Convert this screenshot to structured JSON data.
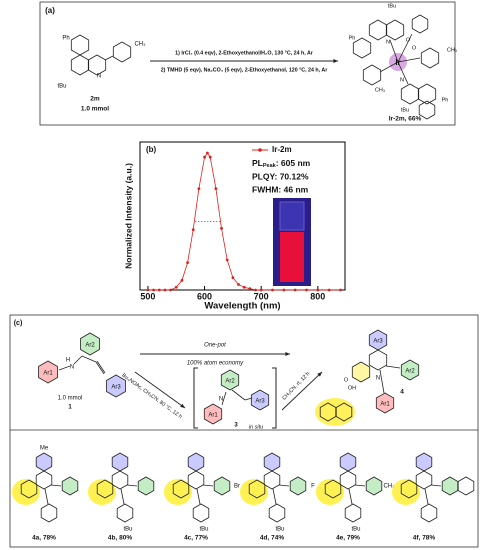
{
  "panel_a": {
    "label": "(a)",
    "reactant": {
      "name": "2m",
      "amount": "1.0 mmol",
      "groups": [
        "Ph",
        "tBu",
        "N",
        "CH₃"
      ]
    },
    "conditions": [
      "1) IrCl₃ (0.4 eqv), 2-Ethoxyethanol/H₂O, 130 °C, 24 h, Ar",
      "2) TMHD (5 eqv), Na₂CO₃ (5 eqv), 2-Ethoxyethanol, 120 °C, 24 h, Ar"
    ],
    "product": {
      "name": "Ir-2m, 66%",
      "metal": "Ir",
      "groups": [
        "tBu",
        "Ph",
        "N",
        "O",
        "O",
        "CH₃",
        "CH₃",
        "N",
        "Ph",
        "tBu"
      ]
    }
  },
  "chart_data": {
    "type": "line",
    "label": "(b)",
    "xlabel": "Wavelength (nm)",
    "ylabel": "Normalized Intensity (a.u.)",
    "x": [
      500,
      510,
      520,
      530,
      540,
      550,
      560,
      570,
      580,
      590,
      600,
      605,
      610,
      620,
      630,
      640,
      650,
      660,
      670,
      680,
      690,
      700,
      720,
      740,
      760,
      780,
      800,
      820,
      840
    ],
    "series": [
      {
        "name": "Ir-2m",
        "color": "#e0201c",
        "values": [
          0,
          0,
          0,
          0,
          0,
          0.02,
          0.07,
          0.2,
          0.44,
          0.74,
          0.97,
          1,
          0.97,
          0.74,
          0.45,
          0.22,
          0.09,
          0.04,
          0.02,
          0.01,
          0,
          0,
          0,
          0,
          0,
          0,
          0,
          0,
          0
        ]
      }
    ],
    "xlim": [
      486,
      848
    ],
    "ylim": [
      0,
      1.08
    ],
    "xticks": [
      500,
      600,
      700,
      800
    ],
    "pl_peak": {
      "text": "PL",
      "subscript": "Peak",
      "value": ": 605 nm"
    },
    "annotations": [
      "PLQY: 70.12%",
      "FWHM: 46 nm"
    ],
    "legend": "upper right"
  },
  "panel_c": {
    "label": "(c)",
    "reactant": {
      "groups": [
        "Ar1",
        "Ar2",
        "Ar3",
        "H",
        "N"
      ],
      "amount": "1.0 mmol",
      "name": "1"
    },
    "one_pot": [
      "One-pot",
      "100% atom economy"
    ],
    "step1": "Bu₄NOAc, CH₃CN, 80 °C, 12 h",
    "intermediate": {
      "groups": [
        "Ar1",
        "Ar2",
        "Ar3",
        "N"
      ],
      "name": "3",
      "note": "in situ"
    },
    "step2": "CH₃CN, rt, 12 h",
    "product": {
      "groups": [
        "Ar1",
        "Ar2",
        "Ar3",
        "N",
        "OH",
        "O"
      ],
      "name": "4"
    },
    "examples": [
      {
        "name": "4a, 78%",
        "top": "Me"
      },
      {
        "name": "4b, 80%",
        "bottom": "tBu"
      },
      {
        "name": "4c, 77%",
        "bottom": "tBu",
        "right": "Br"
      },
      {
        "name": "4d, 74%",
        "bottom": "tBu",
        "right": "F"
      },
      {
        "name": "4e, 79%",
        "bottom": "tBu",
        "right": "CH₃"
      },
      {
        "name": "4f, 78%"
      }
    ]
  }
}
